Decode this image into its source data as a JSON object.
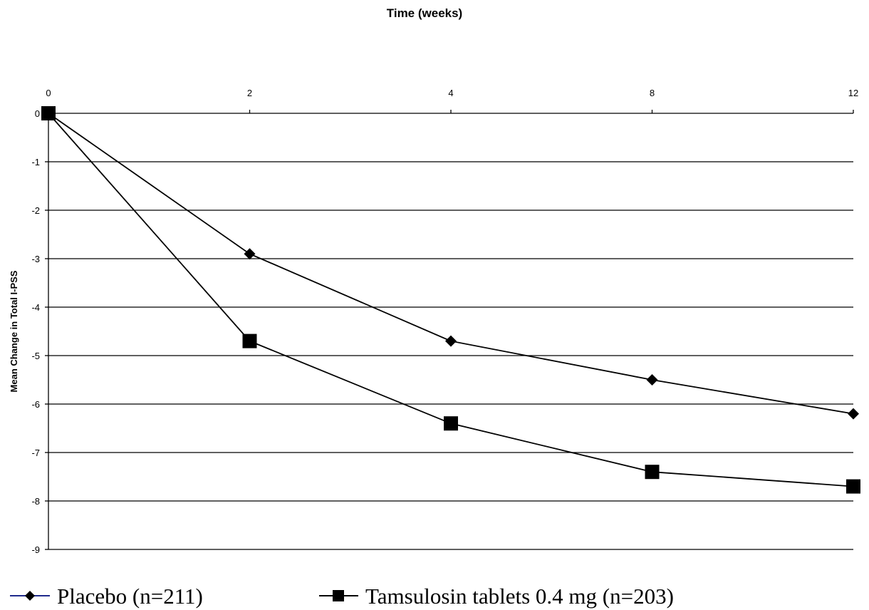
{
  "chart_data": {
    "type": "line",
    "xlabel": "Time (weeks)",
    "ylabel": "Mean Change in Total I-PSS",
    "categories": [
      "0",
      "2",
      "4",
      "8",
      "12"
    ],
    "ylim": [
      -9,
      0
    ],
    "yticks": [
      0,
      -1,
      -2,
      -3,
      -4,
      -5,
      -6,
      -7,
      -8,
      -9
    ],
    "grid": true,
    "legend_position": "bottom",
    "series": [
      {
        "name": "Placebo (n=211)",
        "marker": "diamond",
        "values": [
          0,
          -2.9,
          -4.7,
          -5.5,
          -6.2
        ]
      },
      {
        "name": "Tamsulosin tablets 0.4 mg (n=203)",
        "marker": "square",
        "values": [
          0,
          -4.7,
          -6.4,
          -7.4,
          -7.7
        ]
      }
    ]
  },
  "colors": {
    "line": "#000000",
    "grid": "#000000",
    "legend_placebo_line": "#1f2a8c"
  }
}
